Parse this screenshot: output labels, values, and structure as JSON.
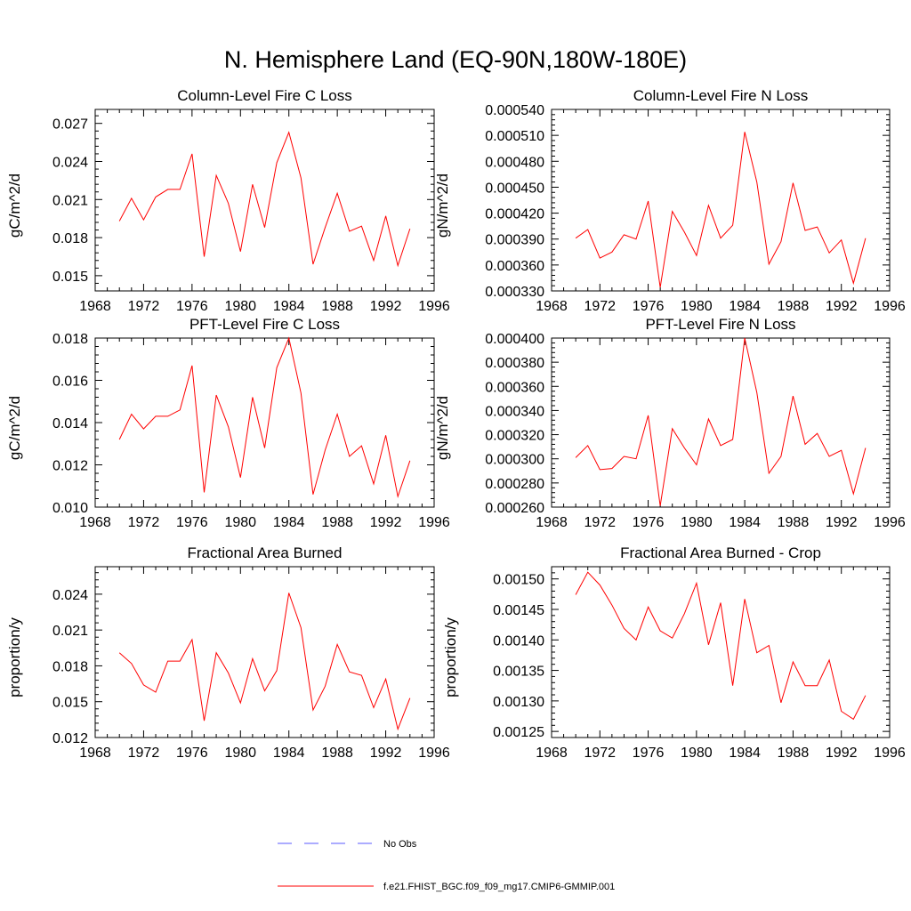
{
  "figure_title": "N. Hemisphere Land (EQ-90N,180W-180E)",
  "colors": {
    "model": "#ff0000",
    "obs": "#5a5aff",
    "axis": "#000000"
  },
  "legend": {
    "obs_label": "No Obs",
    "model_label": "f.e21.FHIST_BGC.f09_f09_mg17.CMIP6-GMMIP.001"
  },
  "chart_data": [
    {
      "type": "line",
      "title": "Column-Level Fire C Loss",
      "xlabel": "",
      "ylabel": "gC/m^2/d",
      "xlim": [
        1968,
        1996
      ],
      "ylim": [
        0.0138,
        0.0281
      ],
      "xticks": [
        1968,
        1972,
        1976,
        1980,
        1984,
        1988,
        1992,
        1996
      ],
      "xtick_labels": [
        "1968",
        "1972",
        "1976",
        "1980",
        "1984",
        "1988",
        "1992",
        "1996"
      ],
      "yticks": [
        0.015,
        0.018,
        0.021,
        0.024,
        0.027
      ],
      "ytick_labels": [
        "0.015",
        "0.018",
        "0.021",
        "0.024",
        "0.027"
      ],
      "x": [
        1970,
        1971,
        1972,
        1973,
        1974,
        1975,
        1976,
        1977,
        1978,
        1979,
        1980,
        1981,
        1982,
        1983,
        1984,
        1985,
        1986,
        1987,
        1988,
        1989,
        1990,
        1991,
        1992,
        1993,
        1994
      ],
      "series": [
        {
          "name": "f.e21.FHIST_BGC.f09_f09_mg17.CMIP6-GMMIP.001",
          "values": [
            0.0193,
            0.0211,
            0.0194,
            0.0212,
            0.0218,
            0.0218,
            0.0246,
            0.0165,
            0.0229,
            0.0207,
            0.0169,
            0.0222,
            0.0188,
            0.0239,
            0.0263,
            0.0227,
            0.0159,
            0.0188,
            0.0215,
            0.0185,
            0.0189,
            0.0162,
            0.0197,
            0.0158,
            0.0187
          ]
        }
      ]
    },
    {
      "type": "line",
      "title": "Column-Level Fire N Loss",
      "xlabel": "",
      "ylabel": "gN/m^2/d",
      "xlim": [
        1968,
        1996
      ],
      "ylim": [
        0.00033,
        0.00054
      ],
      "xticks": [
        1968,
        1972,
        1976,
        1980,
        1984,
        1988,
        1992,
        1996
      ],
      "xtick_labels": [
        "1968",
        "1972",
        "1976",
        "1980",
        "1984",
        "1988",
        "1992",
        "1996"
      ],
      "yticks": [
        0.00033,
        0.00036,
        0.00039,
        0.00042,
        0.00045,
        0.00048,
        0.00051,
        0.00054
      ],
      "ytick_labels": [
        "0.000330",
        "0.000360",
        "0.000390",
        "0.000420",
        "0.000450",
        "0.000480",
        "0.000510",
        "0.000540"
      ],
      "x": [
        1970,
        1971,
        1972,
        1973,
        1974,
        1975,
        1976,
        1977,
        1978,
        1979,
        1980,
        1981,
        1982,
        1983,
        1984,
        1985,
        1986,
        1987,
        1988,
        1989,
        1990,
        1991,
        1992,
        1993,
        1994
      ],
      "series": [
        {
          "name": "f.e21.FHIST_BGC.f09_f09_mg17.CMIP6-GMMIP.001",
          "values": [
            0.000391,
            0.000401,
            0.000368,
            0.000375,
            0.000395,
            0.00039,
            0.000434,
            0.000334,
            0.000422,
            0.000398,
            0.000371,
            0.000429,
            0.000391,
            0.000406,
            0.000514,
            0.000456,
            0.000361,
            0.000387,
            0.000455,
            0.0004,
            0.000404,
            0.000374,
            0.000389,
            0.000339,
            0.000391
          ]
        }
      ]
    },
    {
      "type": "line",
      "title": "PFT-Level Fire C Loss",
      "xlabel": "",
      "ylabel": "gC/m^2/d",
      "xlim": [
        1968,
        1996
      ],
      "ylim": [
        0.01,
        0.018
      ],
      "xticks": [
        1968,
        1972,
        1976,
        1980,
        1984,
        1988,
        1992,
        1996
      ],
      "xtick_labels": [
        "1968",
        "1972",
        "1976",
        "1980",
        "1984",
        "1988",
        "1992",
        "1996"
      ],
      "yticks": [
        0.01,
        0.012,
        0.014,
        0.016,
        0.018
      ],
      "ytick_labels": [
        "0.010",
        "0.012",
        "0.014",
        "0.016",
        "0.018"
      ],
      "x": [
        1970,
        1971,
        1972,
        1973,
        1974,
        1975,
        1976,
        1977,
        1978,
        1979,
        1980,
        1981,
        1982,
        1983,
        1984,
        1985,
        1986,
        1987,
        1988,
        1989,
        1990,
        1991,
        1992,
        1993,
        1994
      ],
      "series": [
        {
          "name": "f.e21.FHIST_BGC.f09_f09_mg17.CMIP6-GMMIP.001",
          "values": [
            0.0132,
            0.0144,
            0.0137,
            0.0143,
            0.0143,
            0.0146,
            0.0167,
            0.0107,
            0.0153,
            0.0138,
            0.0114,
            0.0152,
            0.0128,
            0.0166,
            0.018,
            0.0154,
            0.0106,
            0.0127,
            0.0144,
            0.0124,
            0.0129,
            0.0111,
            0.0134,
            0.0105,
            0.0122
          ]
        }
      ]
    },
    {
      "type": "line",
      "title": "PFT-Level Fire N Loss",
      "xlabel": "",
      "ylabel": "gN/m^2/d",
      "xlim": [
        1968,
        1996
      ],
      "ylim": [
        0.00026,
        0.0004
      ],
      "xticks": [
        1968,
        1972,
        1976,
        1980,
        1984,
        1988,
        1992,
        1996
      ],
      "xtick_labels": [
        "1968",
        "1972",
        "1976",
        "1980",
        "1984",
        "1988",
        "1992",
        "1996"
      ],
      "yticks": [
        0.00026,
        0.00028,
        0.0003,
        0.00032,
        0.00034,
        0.00036,
        0.00038,
        0.0004
      ],
      "ytick_labels": [
        "0.000260",
        "0.000280",
        "0.000300",
        "0.000320",
        "0.000340",
        "0.000360",
        "0.000380",
        "0.000400"
      ],
      "x": [
        1970,
        1971,
        1972,
        1973,
        1974,
        1975,
        1976,
        1977,
        1978,
        1979,
        1980,
        1981,
        1982,
        1983,
        1984,
        1985,
        1986,
        1987,
        1988,
        1989,
        1990,
        1991,
        1992,
        1993,
        1994
      ],
      "series": [
        {
          "name": "f.e21.FHIST_BGC.f09_f09_mg17.CMIP6-GMMIP.001",
          "values": [
            0.000301,
            0.000311,
            0.000291,
            0.000292,
            0.000302,
            0.0003,
            0.000336,
            0.000261,
            0.000325,
            0.000309,
            0.000295,
            0.000333,
            0.000311,
            0.000316,
            0.0004,
            0.000355,
            0.000288,
            0.000302,
            0.000352,
            0.000312,
            0.000321,
            0.000302,
            0.000307,
            0.000271,
            0.000309
          ]
        }
      ]
    },
    {
      "type": "line",
      "title": "Fractional Area Burned",
      "xlabel": "",
      "ylabel": "proportion/y",
      "xlim": [
        1968,
        1996
      ],
      "ylim": [
        0.012,
        0.0263
      ],
      "xticks": [
        1968,
        1972,
        1976,
        1980,
        1984,
        1988,
        1992,
        1996
      ],
      "xtick_labels": [
        "1968",
        "1972",
        "1976",
        "1980",
        "1984",
        "1988",
        "1992",
        "1996"
      ],
      "yticks": [
        0.012,
        0.015,
        0.018,
        0.021,
        0.024
      ],
      "ytick_labels": [
        "0.012",
        "0.015",
        "0.018",
        "0.021",
        "0.024"
      ],
      "x": [
        1970,
        1971,
        1972,
        1973,
        1974,
        1975,
        1976,
        1977,
        1978,
        1979,
        1980,
        1981,
        1982,
        1983,
        1984,
        1985,
        1986,
        1987,
        1988,
        1989,
        1990,
        1991,
        1992,
        1993,
        1994
      ],
      "series": [
        {
          "name": "f.e21.FHIST_BGC.f09_f09_mg17.CMIP6-GMMIP.001",
          "values": [
            0.0191,
            0.0182,
            0.0164,
            0.0158,
            0.0184,
            0.0184,
            0.0202,
            0.0134,
            0.0191,
            0.0174,
            0.0149,
            0.0186,
            0.0159,
            0.0176,
            0.0241,
            0.0212,
            0.0143,
            0.0163,
            0.0198,
            0.0175,
            0.0172,
            0.0145,
            0.0169,
            0.0127,
            0.0153
          ]
        }
      ]
    },
    {
      "type": "line",
      "title": "Fractional Area Burned - Crop",
      "xlabel": "",
      "ylabel": "proportion/y",
      "xlim": [
        1968,
        1996
      ],
      "ylim": [
        0.00124,
        0.00152
      ],
      "xticks": [
        1968,
        1972,
        1976,
        1980,
        1984,
        1988,
        1992,
        1996
      ],
      "xtick_labels": [
        "1968",
        "1972",
        "1976",
        "1980",
        "1984",
        "1988",
        "1992",
        "1996"
      ],
      "yticks": [
        0.00125,
        0.0013,
        0.00135,
        0.0014,
        0.00145,
        0.0015
      ],
      "ytick_labels": [
        "0.00125",
        "0.00130",
        "0.00135",
        "0.00140",
        "0.00145",
        "0.00150"
      ],
      "x": [
        1970,
        1971,
        1972,
        1973,
        1974,
        1975,
        1976,
        1977,
        1978,
        1979,
        1980,
        1981,
        1982,
        1983,
        1984,
        1985,
        1986,
        1987,
        1988,
        1989,
        1990,
        1991,
        1992,
        1993,
        1994
      ],
      "series": [
        {
          "name": "f.e21.FHIST_BGC.f09_f09_mg17.CMIP6-GMMIP.001",
          "values": [
            0.001474,
            0.001511,
            0.00149,
            0.001457,
            0.001419,
            0.0014,
            0.001454,
            0.001415,
            0.001403,
            0.001443,
            0.001493,
            0.001392,
            0.001461,
            0.001325,
            0.001467,
            0.001379,
            0.001391,
            0.001297,
            0.001364,
            0.001325,
            0.001325,
            0.001367,
            0.001283,
            0.00127,
            0.001309
          ]
        }
      ]
    }
  ]
}
